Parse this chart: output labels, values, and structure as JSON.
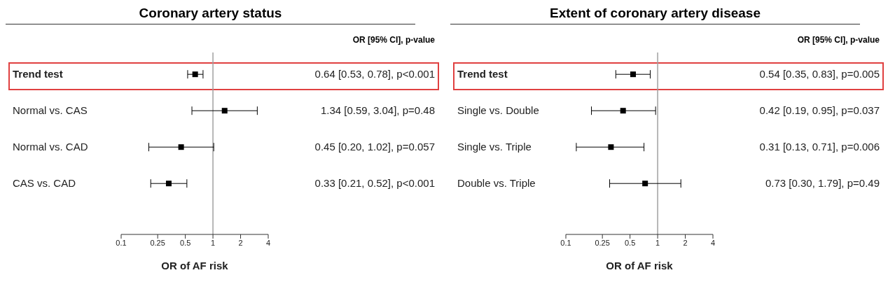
{
  "chart_data": [
    {
      "type": "scatter",
      "orientation": "horizontal",
      "title": "Coronary artery status",
      "xlabel": "OR of AF risk",
      "categories": [
        "Trend test",
        "Normal vs. CAS",
        "Normal vs. CAD",
        "CAS vs. CAD"
      ],
      "values": [
        0.64,
        1.34,
        0.45,
        0.33
      ],
      "errors": [
        [
          0.53,
          0.78
        ],
        [
          0.59,
          3.04
        ],
        [
          0.2,
          1.02
        ],
        [
          0.21,
          0.52
        ]
      ],
      "value_labels": [
        "0.64 [0.53, 0.78], p<0.001",
        "1.34 [0.59, 3.04], p=0.48",
        "0.45 [0.20, 1.02], p=0.057",
        "0.33 [0.21, 0.52], p<0.001"
      ],
      "color": "#000000",
      "marker": "square",
      "log": "x",
      "xlim": [
        0.1,
        4
      ],
      "xticks": [
        0.1,
        0.25,
        0.5,
        1,
        2,
        4
      ],
      "ref_lines": [
        {
          "axis": "x",
          "value": 1,
          "color": "#a0a0a0"
        }
      ],
      "annotations": [
        "OR [95% CI], p-value"
      ]
    },
    {
      "type": "scatter",
      "orientation": "horizontal",
      "title": "Extent of coronary artery disease",
      "xlabel": "OR of AF risk",
      "categories": [
        "Trend test",
        "Single vs. Double",
        "Single vs. Triple",
        "Double vs. Triple"
      ],
      "values": [
        0.54,
        0.42,
        0.31,
        0.73
      ],
      "errors": [
        [
          0.35,
          0.83
        ],
        [
          0.19,
          0.95
        ],
        [
          0.13,
          0.71
        ],
        [
          0.3,
          1.79
        ]
      ],
      "value_labels": [
        "0.54 [0.35, 0.83], p=0.005",
        "0.42 [0.19, 0.95], p=0.037",
        "0.31 [0.13, 0.71], p=0.006",
        "0.73 [0.30, 1.79], p=0.49"
      ],
      "color": "#000000",
      "marker": "square",
      "log": "x",
      "xlim": [
        0.1,
        4
      ],
      "xticks": [
        0.1,
        0.25,
        0.5,
        1,
        2,
        4
      ],
      "ref_lines": [
        {
          "axis": "x",
          "value": 1,
          "color": "#a0a0a0"
        }
      ],
      "annotations": [
        "OR [95% CI], p-value"
      ]
    }
  ]
}
